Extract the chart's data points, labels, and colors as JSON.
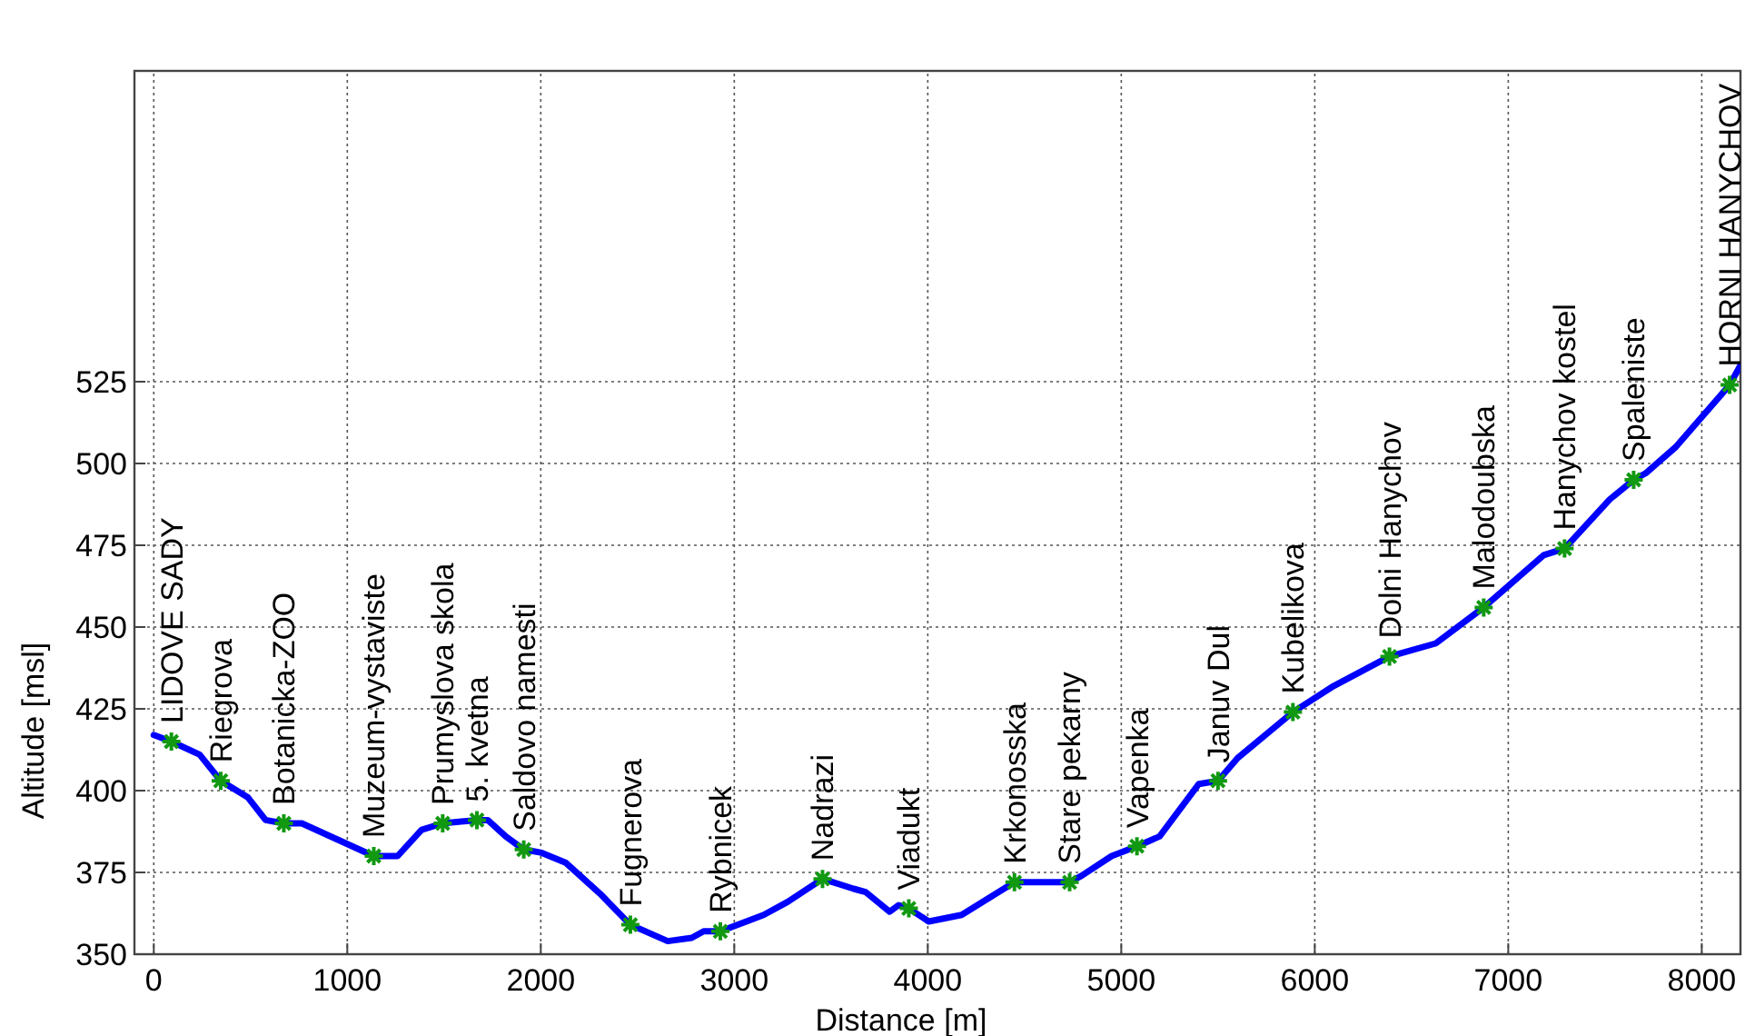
{
  "chart_data": {
    "type": "line",
    "xlabel": "Distance [m]",
    "ylabel": "Altitude [msl]",
    "xlim": [
      -100,
      8200
    ],
    "ylim": [
      350,
      620
    ],
    "xticks": [
      0,
      1000,
      2000,
      3000,
      4000,
      5000,
      6000,
      7000,
      8000
    ],
    "yticks": [
      350,
      375,
      400,
      425,
      450,
      475,
      500,
      525
    ],
    "grid": true,
    "series": [
      {
        "color": "#0000ff",
        "marker": "none",
        "x": [
          0,
          91,
          237,
          346,
          485,
          578,
          672,
          765,
          951,
          1137,
          1260,
          1384,
          1493,
          1670,
          1726,
          1819,
          1912,
          2005,
          2128,
          2315,
          2463,
          2656,
          2780,
          2842,
          2928,
          3152,
          3276,
          3456,
          3617,
          3679,
          3803,
          3849,
          3902,
          4005,
          4175,
          4448,
          4733,
          4795,
          4950,
          5081,
          5198,
          5400,
          5500,
          5602,
          5887,
          6098,
          6386,
          6625,
          6873,
          7183,
          7291,
          7524,
          7648,
          7710,
          7865,
          8144,
          8200
        ],
        "values": [
          417,
          415,
          411,
          403,
          398,
          391,
          390,
          390,
          385,
          380,
          380,
          388,
          390,
          391,
          391,
          386,
          382,
          381,
          378,
          368,
          359,
          354,
          355,
          357,
          357,
          362,
          366,
          373,
          370,
          369,
          363,
          365,
          364,
          360,
          362,
          372,
          372,
          374,
          380,
          383,
          386,
          402,
          403,
          410,
          424,
          432,
          441,
          445,
          456,
          472,
          474,
          489,
          495,
          497,
          505,
          524,
          530
        ]
      },
      {
        "type": "scatter",
        "color": "#119911",
        "marker": "cross",
        "x": [
          91,
          346,
          672,
          1137,
          1493,
          1670,
          1912,
          2463,
          2928,
          3456,
          3902,
          4448,
          4733,
          5081,
          5500,
          5887,
          6386,
          6873,
          7291,
          7648,
          8144
        ],
        "values": [
          415,
          403,
          390,
          380,
          390,
          391,
          382,
          359,
          357,
          373,
          364,
          372,
          372,
          383,
          403,
          424,
          441,
          456,
          474,
          495,
          524
        ]
      }
    ],
    "annotations": [
      {
        "text": "LIDOVE SADY",
        "x": 91,
        "y": 415
      },
      {
        "text": "Riegrova",
        "x": 346,
        "y": 403
      },
      {
        "text": "Botanicka-ZOO",
        "x": 672,
        "y": 390
      },
      {
        "text": "Muzeum-vystaviste",
        "x": 1137,
        "y": 380
      },
      {
        "text": "Prumyslova skola",
        "x": 1493,
        "y": 390
      },
      {
        "text": "5. kvetna",
        "x": 1670,
        "y": 391
      },
      {
        "text": "Saldovo namesti",
        "x": 1912,
        "y": 382
      },
      {
        "text": "Fugnerova",
        "x": 2463,
        "y": 359
      },
      {
        "text": "Rybnicek",
        "x": 2928,
        "y": 357
      },
      {
        "text": "Nadrazi",
        "x": 3456,
        "y": 373
      },
      {
        "text": "Viadukt",
        "x": 3902,
        "y": 364
      },
      {
        "text": "Krkonosska",
        "x": 4448,
        "y": 372
      },
      {
        "text": "Stare pekarny",
        "x": 4733,
        "y": 372
      },
      {
        "text": "Vapenka",
        "x": 5081,
        "y": 383
      },
      {
        "text": "Januv Dul",
        "x": 5500,
        "y": 403
      },
      {
        "text": "Kubelikova",
        "x": 5887,
        "y": 424
      },
      {
        "text": "Dolni Hanychov",
        "x": 6386,
        "y": 441
      },
      {
        "text": "Malodoubska",
        "x": 6873,
        "y": 456
      },
      {
        "text": "Hanychov kostel",
        "x": 7291,
        "y": 474
      },
      {
        "text": "Spaleniste",
        "x": 7648,
        "y": 495
      },
      {
        "text": "HORNI HANYCHOV",
        "x": 8144,
        "y": 524
      }
    ]
  }
}
